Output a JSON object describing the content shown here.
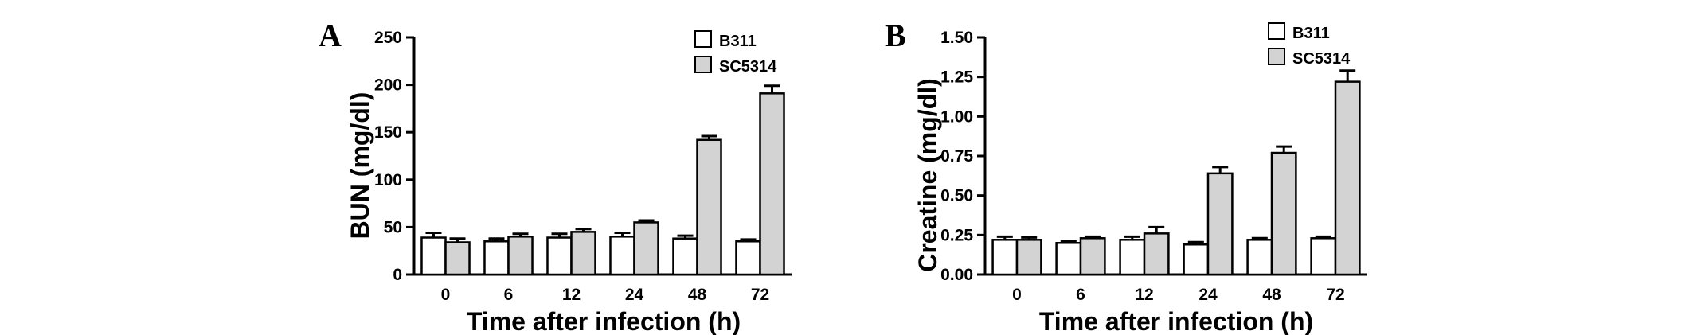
{
  "chart_data": [
    {
      "type": "bar",
      "panel_label": "A",
      "categories": [
        "0",
        "6",
        "12",
        "24",
        "48",
        "72"
      ],
      "series": [
        {
          "name": "B311",
          "color": "#ffffff",
          "values": [
            39,
            35,
            39,
            40,
            38,
            35
          ],
          "errors": [
            5,
            3,
            4,
            4,
            3,
            2
          ]
        },
        {
          "name": "SC5314",
          "color": "#d3d3d3",
          "values": [
            34,
            40,
            45,
            55,
            142,
            191
          ],
          "errors": [
            4,
            3,
            3,
            2,
            4,
            8
          ]
        }
      ],
      "xlabel": "Time after infection (h)",
      "ylabel": "BUN (mg/dl)",
      "ylim": [
        0,
        250
      ],
      "yticks": [
        "0",
        "50",
        "100",
        "150",
        "200",
        "250"
      ],
      "legend_position": "top-right",
      "grid": false
    },
    {
      "type": "bar",
      "panel_label": "B",
      "categories": [
        "0",
        "6",
        "12",
        "24",
        "48",
        "72"
      ],
      "series": [
        {
          "name": "B311",
          "color": "#ffffff",
          "values": [
            0.22,
            0.2,
            0.22,
            0.19,
            0.22,
            0.23
          ],
          "errors": [
            0.02,
            0.01,
            0.02,
            0.015,
            0.01,
            0.01
          ]
        },
        {
          "name": "SC5314",
          "color": "#d3d3d3",
          "values": [
            0.22,
            0.23,
            0.26,
            0.64,
            0.77,
            1.22
          ],
          "errors": [
            0.015,
            0.01,
            0.04,
            0.04,
            0.04,
            0.07
          ]
        }
      ],
      "xlabel": "Time after infection (h)",
      "ylabel": "Creatine (mg/dl)",
      "ylim": [
        0,
        1.5
      ],
      "yticks": [
        "0.00",
        "0.25",
        "0.50",
        "0.75",
        "1.00",
        "1.25",
        "1.50"
      ],
      "legend_position": "top-right",
      "grid": false
    }
  ]
}
